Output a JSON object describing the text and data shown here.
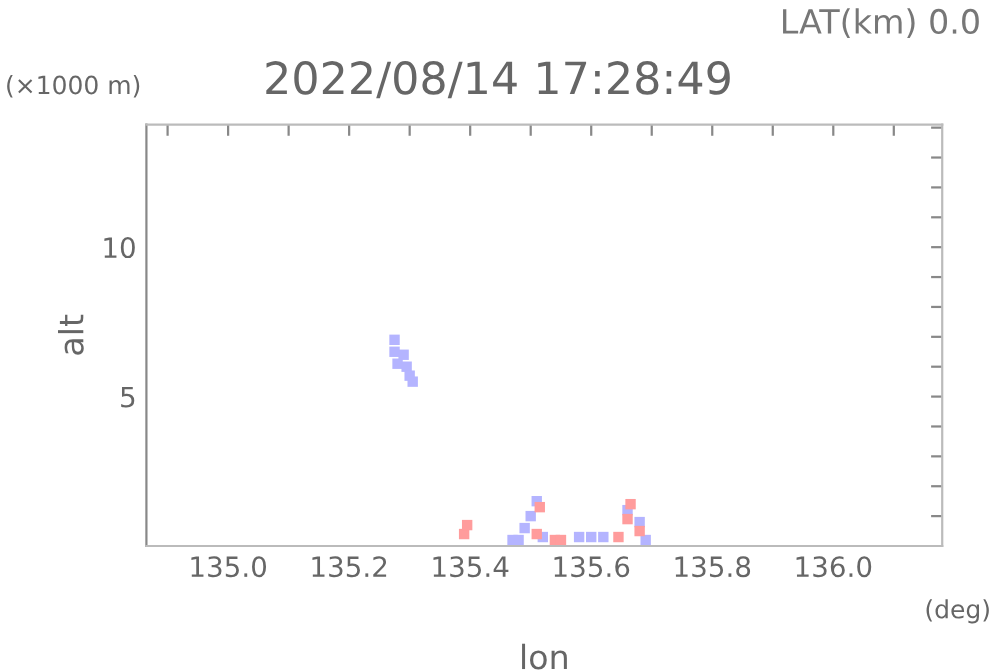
{
  "chart_data": {
    "type": "scatter",
    "title": "2022/08/14 17:28:49",
    "subtitle": "LAT(km) 0.0",
    "xlabel": "lon",
    "ylabel": "alt",
    "annotations": [
      "(×1000 m)",
      "(deg)"
    ],
    "marker": "square",
    "grid": false,
    "xlim": [
      134.865,
      136.18
    ],
    "ylim": [
      0,
      14.1
    ],
    "xticks": [
      {
        "value": 134.9,
        "label": null
      },
      {
        "value": 135.0,
        "label": "135.0"
      },
      {
        "value": 135.1,
        "label": null
      },
      {
        "value": 135.2,
        "label": "135.2"
      },
      {
        "value": 135.3,
        "label": null
      },
      {
        "value": 135.4,
        "label": "135.4"
      },
      {
        "value": 135.5,
        "label": null
      },
      {
        "value": 135.6,
        "label": "135.6"
      },
      {
        "value": 135.7,
        "label": null
      },
      {
        "value": 135.8,
        "label": "135.8"
      },
      {
        "value": 135.9,
        "label": null
      },
      {
        "value": 136.0,
        "label": "136.0"
      },
      {
        "value": 136.1,
        "label": null
      }
    ],
    "yticks": [
      {
        "value": 1,
        "label": null
      },
      {
        "value": 2,
        "label": null
      },
      {
        "value": 3,
        "label": null
      },
      {
        "value": 4,
        "label": null
      },
      5,
      {
        "value": 6,
        "label": null
      },
      {
        "value": 7,
        "label": null
      },
      {
        "value": 8,
        "label": null
      },
      {
        "value": 9,
        "label": null
      },
      10,
      {
        "value": 11,
        "label": null
      },
      {
        "value": 12,
        "label": null
      },
      {
        "value": 13,
        "label": null
      },
      {
        "value": 14,
        "label": null
      }
    ],
    "series": [
      {
        "color": "#b4b4ff",
        "x": [
          135.275,
          135.275,
          135.28,
          135.29,
          135.295,
          135.3,
          135.305,
          135.47,
          135.48,
          135.49,
          135.5,
          135.51,
          135.52,
          135.58,
          135.6,
          135.62,
          135.66,
          135.68,
          135.69
        ],
        "values": [
          6.9,
          6.5,
          6.1,
          6.4,
          6.0,
          5.7,
          5.5,
          0.2,
          0.2,
          0.6,
          1.0,
          1.5,
          0.3,
          0.3,
          0.3,
          0.3,
          1.2,
          0.8,
          0.2
        ]
      },
      {
        "color": "#ff9c9c",
        "x": [
          135.39,
          135.395,
          135.51,
          135.515,
          135.54,
          135.55,
          135.645,
          135.66,
          135.665,
          135.68
        ],
        "values": [
          0.4,
          0.7,
          0.4,
          1.3,
          0.2,
          0.2,
          0.3,
          0.9,
          1.4,
          0.5
        ]
      }
    ]
  }
}
